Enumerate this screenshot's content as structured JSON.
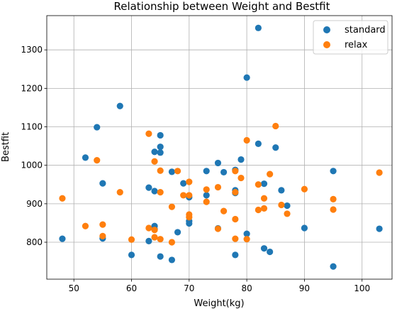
{
  "chart_data": {
    "type": "scatter",
    "title": "Relationship between Weight and Bestfit",
    "xlabel": "Weight(kg)",
    "ylabel": "Bestfit",
    "xlim": [
      45.3,
      105.2
    ],
    "ylim": [
      704,
      1389
    ],
    "xticks": [
      50,
      60,
      70,
      80,
      90,
      100
    ],
    "yticks": [
      800,
      900,
      1000,
      1100,
      1200,
      1300
    ],
    "grid": true,
    "legend_position": "top-right",
    "series": [
      {
        "name": "standard",
        "color": "#1f77b4",
        "points": [
          [
            48,
            809
          ],
          [
            52,
            1020
          ],
          [
            54,
            1099
          ],
          [
            55,
            953
          ],
          [
            55,
            810
          ],
          [
            58,
            1154
          ],
          [
            60,
            767
          ],
          [
            63,
            942
          ],
          [
            63,
            803
          ],
          [
            64,
            1035
          ],
          [
            64,
            933
          ],
          [
            64,
            842
          ],
          [
            64,
            834
          ],
          [
            65,
            1078
          ],
          [
            65,
            1048
          ],
          [
            65,
            1033
          ],
          [
            65,
            763
          ],
          [
            67,
            983
          ],
          [
            67,
            754
          ],
          [
            68,
            826
          ],
          [
            69,
            953
          ],
          [
            70,
            917
          ],
          [
            70,
            855
          ],
          [
            70,
            849
          ],
          [
            73,
            985
          ],
          [
            73,
            922
          ],
          [
            75,
            1006
          ],
          [
            75,
            836
          ],
          [
            76,
            982
          ],
          [
            78,
            988
          ],
          [
            78,
            935
          ],
          [
            78,
            928
          ],
          [
            78,
            767
          ],
          [
            79,
            1015
          ],
          [
            80,
            1228
          ],
          [
            80,
            822
          ],
          [
            82,
            1357
          ],
          [
            82,
            1056
          ],
          [
            83,
            952
          ],
          [
            83,
            784
          ],
          [
            84,
            775
          ],
          [
            85,
            1046
          ],
          [
            86,
            935
          ],
          [
            87,
            895
          ],
          [
            90,
            837
          ],
          [
            95,
            985
          ],
          [
            95,
            737
          ],
          [
            103,
            835
          ]
        ]
      },
      {
        "name": "relax",
        "color": "#ff7f0e",
        "points": [
          [
            48,
            914
          ],
          [
            52,
            842
          ],
          [
            54,
            1013
          ],
          [
            55,
            846
          ],
          [
            55,
            816
          ],
          [
            58,
            930
          ],
          [
            60,
            807
          ],
          [
            63,
            1082
          ],
          [
            63,
            837
          ],
          [
            64,
            1010
          ],
          [
            64,
            832
          ],
          [
            64,
            813
          ],
          [
            65,
            986
          ],
          [
            65,
            930
          ],
          [
            65,
            808
          ],
          [
            67,
            892
          ],
          [
            67,
            800
          ],
          [
            68,
            985
          ],
          [
            69,
            922
          ],
          [
            70,
            957
          ],
          [
            70,
            922
          ],
          [
            70,
            872
          ],
          [
            70,
            865
          ],
          [
            73,
            937
          ],
          [
            73,
            905
          ],
          [
            75,
            943
          ],
          [
            75,
            835
          ],
          [
            76,
            881
          ],
          [
            78,
            985
          ],
          [
            78,
            930
          ],
          [
            78,
            860
          ],
          [
            78,
            809
          ],
          [
            79,
            967
          ],
          [
            80,
            1065
          ],
          [
            80,
            808
          ],
          [
            82,
            950
          ],
          [
            82,
            884
          ],
          [
            83,
            914
          ],
          [
            83,
            888
          ],
          [
            84,
            977
          ],
          [
            85,
            1102
          ],
          [
            86,
            897
          ],
          [
            87,
            874
          ],
          [
            90,
            938
          ],
          [
            95,
            912
          ],
          [
            95,
            885
          ],
          [
            103,
            981
          ]
        ]
      }
    ]
  }
}
